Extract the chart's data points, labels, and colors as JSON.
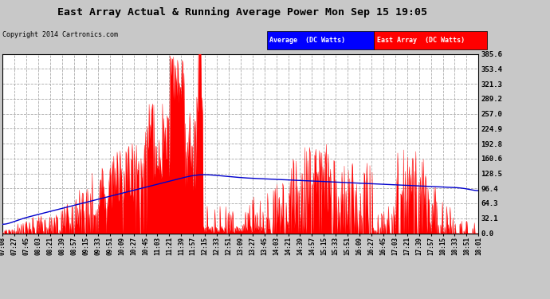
{
  "title": "East Array Actual & Running Average Power Mon Sep 15 19:05",
  "copyright": "Copyright 2014 Cartronics.com",
  "legend_avg": "Average  (DC Watts)",
  "legend_east": "East Array  (DC Watts)",
  "y_max": 385.6,
  "y_min": 0.0,
  "y_ticks": [
    0.0,
    32.1,
    64.3,
    96.4,
    128.5,
    160.6,
    192.8,
    224.9,
    257.0,
    289.2,
    321.3,
    353.4,
    385.6
  ],
  "background_color": "#c8c8c8",
  "plot_bg_color": "#ffffff",
  "grid_color": "#aaaaaa",
  "east_array_color": "#ff0000",
  "avg_color": "#0000cd",
  "title_color": "#000000",
  "time_labels": [
    "07:08",
    "07:27",
    "07:45",
    "08:03",
    "08:21",
    "08:39",
    "08:57",
    "09:15",
    "09:33",
    "09:51",
    "10:09",
    "10:27",
    "10:45",
    "11:03",
    "11:21",
    "11:39",
    "11:57",
    "12:15",
    "12:33",
    "12:51",
    "13:09",
    "13:27",
    "13:45",
    "14:03",
    "14:21",
    "14:39",
    "14:57",
    "15:15",
    "15:33",
    "15:51",
    "16:09",
    "16:27",
    "16:45",
    "17:03",
    "17:21",
    "17:39",
    "17:57",
    "18:15",
    "18:33",
    "18:51",
    "18:01"
  ]
}
